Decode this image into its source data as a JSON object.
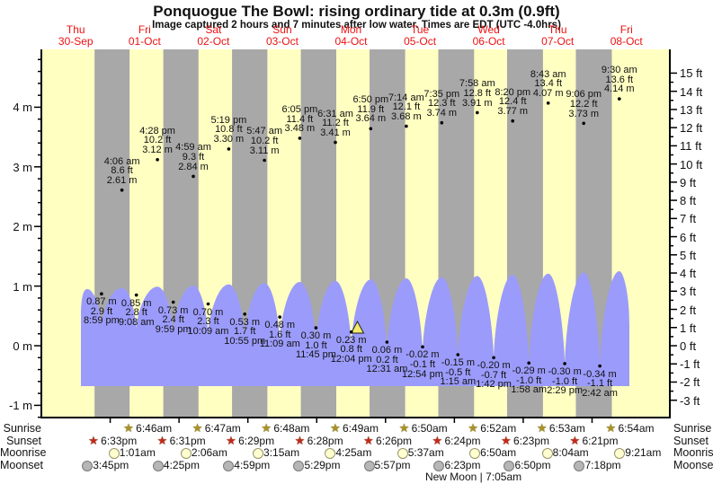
{
  "title": "Ponquogue The Bowl: rising  ordinary tide at 0.3m (0.9ft)",
  "subtitle": "Image captured 2 hours and 7 minutes after low water. Times are EDT (UTC -4.0hrs)",
  "days": [
    {
      "name": "Thu",
      "date": "30-Sep"
    },
    {
      "name": "Fri",
      "date": "01-Oct"
    },
    {
      "name": "Sat",
      "date": "02-Oct"
    },
    {
      "name": "Sun",
      "date": "03-Oct"
    },
    {
      "name": "Mon",
      "date": "04-Oct"
    },
    {
      "name": "Tue",
      "date": "05-Oct"
    },
    {
      "name": "Wed",
      "date": "06-Oct"
    },
    {
      "name": "Thu",
      "date": "07-Oct"
    },
    {
      "name": "Fri",
      "date": "08-Oct"
    }
  ],
  "chart_data": {
    "type": "area",
    "title": "Ponquogue The Bowl tide height",
    "ylabel_left_unit": "m",
    "ylabel_right_unit": "ft",
    "y_axis_left": {
      "labels": [
        "4 m",
        "3 m",
        "2 m",
        "1 m",
        "0 m",
        "-1 m"
      ],
      "values_m": [
        4,
        3,
        2,
        1,
        0,
        -1
      ],
      "range_m": [
        -1.2,
        5.0
      ]
    },
    "y_axis_right": {
      "labels": [
        "15 ft",
        "14 ft",
        "13 ft",
        "12 ft",
        "11 ft",
        "10 ft",
        "9 ft",
        "8 ft",
        "7 ft",
        "6 ft",
        "5 ft",
        "4 ft",
        "3 ft",
        "2 ft",
        "1 ft",
        "0 ft",
        "-1 ft",
        "-2 ft",
        "-3 ft"
      ],
      "values_ft": [
        15,
        14,
        13,
        12,
        11,
        10,
        9,
        8,
        7,
        6,
        5,
        4,
        3,
        2,
        1,
        0,
        -1,
        -2,
        -3
      ]
    },
    "high_tides": [
      {
        "day": 1,
        "time": "4:06 am",
        "ft": "8.6 ft",
        "m": "2.61 m"
      },
      {
        "day": 1,
        "time": "4:28 pm",
        "ft": "10.2 ft",
        "m": "3.12 m"
      },
      {
        "day": 2,
        "time": "4:59 am",
        "ft": "9.3 ft",
        "m": "2.84 m"
      },
      {
        "day": 2,
        "time": "5:19 pm",
        "ft": "10.8 ft",
        "m": "3.30 m"
      },
      {
        "day": 3,
        "time": "5:47 am",
        "ft": "10.2 ft",
        "m": "3.11 m"
      },
      {
        "day": 3,
        "time": "6:05 pm",
        "ft": "11.4 ft",
        "m": "3.48 m"
      },
      {
        "day": 4,
        "time": "6:31 am",
        "ft": "11.2 ft",
        "m": "3.41 m"
      },
      {
        "day": 4,
        "time": "6:50 pm",
        "ft": "11.9 ft",
        "m": "3.64 m"
      },
      {
        "day": 5,
        "time": "7:14 am",
        "ft": "12.1 ft",
        "m": "3.68 m"
      },
      {
        "day": 5,
        "time": "7:35 pm",
        "ft": "12.3 ft",
        "m": "3.74 m"
      },
      {
        "day": 6,
        "time": "7:58 am",
        "ft": "12.8 ft",
        "m": "3.91 m"
      },
      {
        "day": 6,
        "time": "8:20 pm",
        "ft": "12.4 ft",
        "m": "3.77 m"
      },
      {
        "day": 7,
        "time": "8:43 am",
        "ft": "13.4 ft",
        "m": "4.07 m"
      },
      {
        "day": 7,
        "time": "9:06 pm",
        "ft": "12.2 ft",
        "m": "3.73 m"
      },
      {
        "day": 8,
        "time": "9:30 am",
        "ft": "13.6 ft",
        "m": "4.14 m"
      }
    ],
    "low_tides": [
      {
        "day": 0,
        "time": "8:59 pm",
        "ft": "2.9 ft",
        "m": "0.87 m"
      },
      {
        "day": 1,
        "time": "9:08 am",
        "ft": "2.8 ft",
        "m": "0.85 m"
      },
      {
        "day": 1,
        "time": "9:59 pm",
        "ft": "2.4 ft",
        "m": "0.73 m"
      },
      {
        "day": 2,
        "time": "10:09 am",
        "ft": "2.3 ft",
        "m": "0.70 m"
      },
      {
        "day": 2,
        "time": "10:55 pm",
        "ft": "1.7 ft",
        "m": "0.53 m"
      },
      {
        "day": 3,
        "time": "11:09 am",
        "ft": "1.6 ft",
        "m": "0.48 m"
      },
      {
        "day": 3,
        "time": "11:45 pm",
        "ft": "1.0 ft",
        "m": "0.30 m"
      },
      {
        "day": 4,
        "time": "12:04 pm",
        "ft": "0.8 ft",
        "m": "0.23 m"
      },
      {
        "day": 5,
        "time": "12:31 am",
        "ft": "0.2 ft",
        "m": "0.06 m"
      },
      {
        "day": 5,
        "time": "12:54 pm",
        "ft": "-0.1 ft",
        "m": "-0.02 m"
      },
      {
        "day": 6,
        "time": "1:15 am",
        "ft": "-0.5 ft",
        "m": "-0.15 m"
      },
      {
        "day": 6,
        "time": "1:42 pm",
        "ft": "-0.7 ft",
        "m": "-0.20 m"
      },
      {
        "day": 7,
        "time": "1:58 am",
        "ft": "-1.0 ft",
        "m": "-0.29 m"
      },
      {
        "day": 7,
        "time": "2:29 pm",
        "ft": "-1.0 ft",
        "m": "-0.30 m"
      },
      {
        "day": 8,
        "time": "2:42 am",
        "ft": "-1.1 ft",
        "m": "-0.34 m"
      }
    ],
    "now_marker": {
      "day": 4,
      "time": "2:11 pm",
      "tide_now": "0.3m (0.9ft)",
      "state": "rising"
    },
    "layout": {
      "grid": false,
      "legend": "none",
      "day_bands": "yellow=day gray=night",
      "water_fill": true
    }
  },
  "almanac": {
    "rows": [
      {
        "key": "sunrise",
        "label": "Sunrise",
        "icon": "sunrise-star",
        "times": [
          {
            "day": 1,
            "time": "6:46am"
          },
          {
            "day": 2,
            "time": "6:47am"
          },
          {
            "day": 3,
            "time": "6:48am"
          },
          {
            "day": 4,
            "time": "6:49am"
          },
          {
            "day": 5,
            "time": "6:50am"
          },
          {
            "day": 6,
            "time": "6:52am"
          },
          {
            "day": 7,
            "time": "6:53am"
          },
          {
            "day": 8,
            "time": "6:54am"
          }
        ]
      },
      {
        "key": "sunset",
        "label": "Sunset",
        "icon": "sunset-star",
        "times": [
          {
            "day": 0,
            "time": "6:33pm"
          },
          {
            "day": 1,
            "time": "6:31pm"
          },
          {
            "day": 2,
            "time": "6:29pm"
          },
          {
            "day": 3,
            "time": "6:28pm"
          },
          {
            "day": 4,
            "time": "6:26pm"
          },
          {
            "day": 5,
            "time": "6:24pm"
          },
          {
            "day": 6,
            "time": "6:23pm"
          },
          {
            "day": 7,
            "time": "6:21pm"
          }
        ]
      },
      {
        "key": "moonrise",
        "label": "Moonrise",
        "icon": "moonrise-circle",
        "times": [
          {
            "day": 1,
            "time": "1:01am"
          },
          {
            "day": 2,
            "time": "2:06am"
          },
          {
            "day": 3,
            "time": "3:15am"
          },
          {
            "day": 4,
            "time": "4:25am"
          },
          {
            "day": 5,
            "time": "5:37am"
          },
          {
            "day": 6,
            "time": "6:50am"
          },
          {
            "day": 7,
            "time": "8:04am"
          },
          {
            "day": 8,
            "time": "9:21am"
          }
        ]
      },
      {
        "key": "moonset",
        "label": "Moonset",
        "icon": "moonset-circle",
        "times": [
          {
            "day": 0,
            "time": "3:45pm"
          },
          {
            "day": 1,
            "time": "4:25pm"
          },
          {
            "day": 2,
            "time": "4:59pm"
          },
          {
            "day": 3,
            "time": "5:29pm"
          },
          {
            "day": 4,
            "time": "5:57pm"
          },
          {
            "day": 5,
            "time": "6:23pm"
          },
          {
            "day": 6,
            "time": "6:50pm"
          },
          {
            "day": 7,
            "time": "7:18pm"
          }
        ]
      }
    ],
    "new_moon": {
      "text": "New Moon | 7:05am",
      "day": 6,
      "time": "7:05am"
    }
  },
  "colors": {
    "day_band": "#ffffc2",
    "night_band": "#a8a8a8",
    "water": "#9b9bfb",
    "date_text": "#ee1111",
    "axis": "#000000",
    "now_marker_fill": "#f2ea6a",
    "sunrise_star": "#ab9222",
    "sunset_star": "#c5291c",
    "moonrise_fill": "#ffffd0",
    "moonrise_border": "#95936a",
    "moonset_fill": "#b6b6b6",
    "moonset_border": "#7a7a7a"
  }
}
